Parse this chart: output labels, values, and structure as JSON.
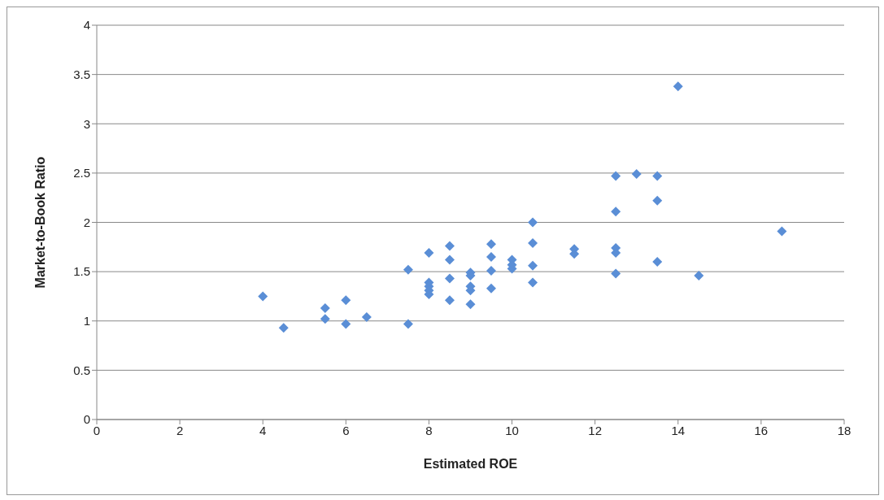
{
  "chart_data": {
    "type": "scatter",
    "xlabel": "Estimated ROE",
    "ylabel": "Market-to-Book Ratio",
    "x": [
      4,
      4.5,
      5.5,
      5.5,
      6,
      6,
      6.5,
      7.5,
      7.5,
      8,
      8,
      8,
      8,
      8,
      8.5,
      8.5,
      8.5,
      8.5,
      9,
      9,
      9,
      9,
      9,
      9.5,
      9.5,
      9.5,
      9.5,
      10,
      10,
      10,
      10.5,
      10.5,
      10.5,
      10.5,
      11.5,
      11.5,
      12.5,
      12.5,
      12.5,
      12.5,
      12.5,
      13,
      13.5,
      13.5,
      13.5,
      14,
      14.5,
      16.5
    ],
    "series": [
      {
        "color": "#5a8ed6",
        "values": [
          1.25,
          0.93,
          1.13,
          1.02,
          1.21,
          0.97,
          1.04,
          1.52,
          0.97,
          1.69,
          1.39,
          1.35,
          1.31,
          1.27,
          1.76,
          1.62,
          1.43,
          1.21,
          1.49,
          1.46,
          1.35,
          1.31,
          1.17,
          1.78,
          1.65,
          1.51,
          1.33,
          1.62,
          1.57,
          1.53,
          2.0,
          1.79,
          1.56,
          1.39,
          1.73,
          1.68,
          2.47,
          2.11,
          1.74,
          1.69,
          1.48,
          2.49,
          2.47,
          2.22,
          1.6,
          3.38,
          1.46,
          1.91
        ]
      }
    ],
    "xlim": [
      0,
      18
    ],
    "xticks": [
      0,
      2,
      4,
      6,
      8,
      10,
      12,
      14,
      16,
      18
    ],
    "ylim": [
      0,
      4
    ],
    "yticks": [
      0,
      0.5,
      1,
      1.5,
      2,
      2.5,
      3,
      3.5,
      4
    ],
    "grid": "y",
    "marker": "diamond",
    "legend": false
  }
}
